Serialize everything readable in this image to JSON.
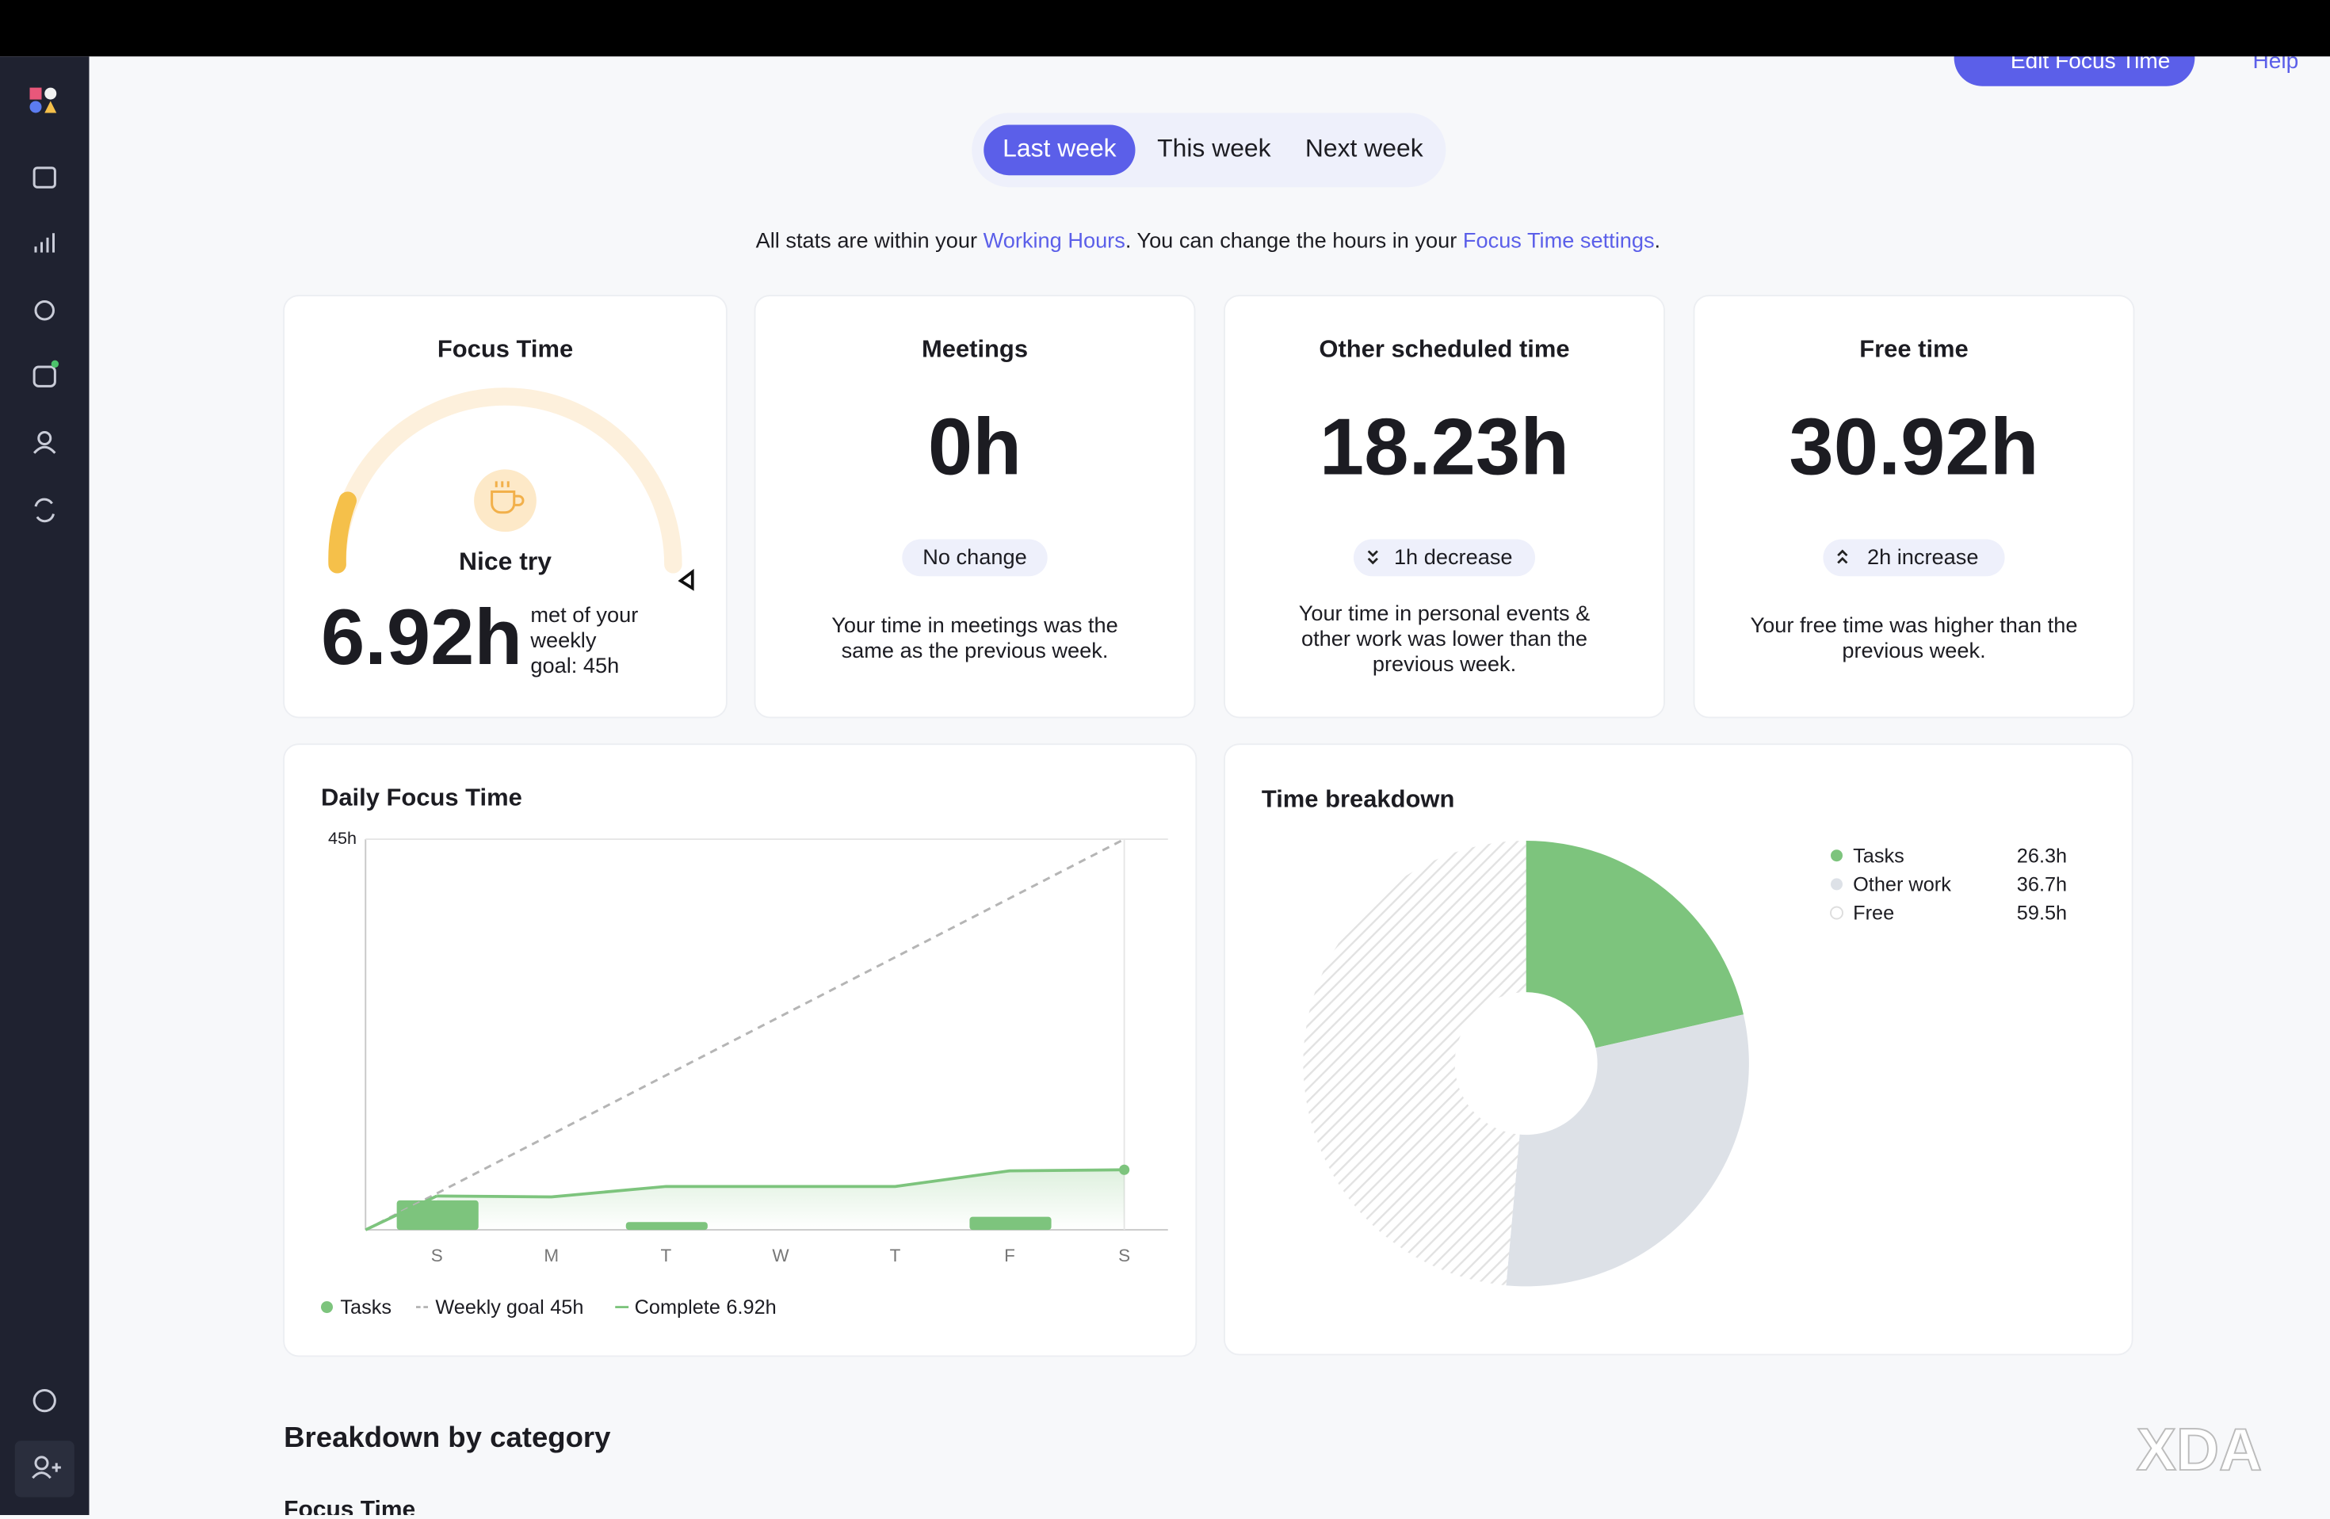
{
  "top_actions": {
    "edit": "Edit Focus Time",
    "help": "Help"
  },
  "tabs": [
    "Last week",
    "This week",
    "Next week"
  ],
  "notice": {
    "before": "All stats are within your ",
    "link1": "Working Hours",
    "middle": ". You can change the hours in your ",
    "link2": "Focus Time settings",
    "after": "."
  },
  "focus_card": {
    "title": "Focus Time",
    "status": "Nice try",
    "value": "6.92h",
    "note_lines": [
      "met of your",
      "weekly",
      "goal: 45h"
    ]
  },
  "stat_cards": [
    {
      "title": "Meetings",
      "value": "0h",
      "badge": "No change",
      "text_lines": [
        "Your time in meetings was the",
        "same as the previous week."
      ]
    },
    {
      "title": "Other scheduled time",
      "value": "18.23h",
      "badge": "1h decrease",
      "text_lines": [
        "Your time in personal events &",
        "other work was lower than the",
        "previous week."
      ]
    },
    {
      "title": "Free time",
      "value": "30.92h",
      "badge": "2h increase",
      "text_lines": [
        "Your free time was higher than the",
        "previous week."
      ]
    }
  ],
  "daily_focus": {
    "type": "line",
    "title": "Daily Focus Time",
    "categories": [
      "S",
      "M",
      "T",
      "W",
      "T",
      "F",
      "S"
    ],
    "ylim": [
      0,
      45
    ],
    "yticks": [
      {
        "value": 45,
        "label": "45h"
      }
    ],
    "series": [
      {
        "name": "Tasks",
        "type": "bar",
        "color": "#7dc47d",
        "values": [
          3.4,
          0,
          0.9,
          0,
          0,
          1.5,
          0
        ]
      },
      {
        "name": "Weekly goal",
        "legend_value": "45h",
        "color": "#b5b5b5",
        "dashed": true,
        "values": [
          4.2,
          11.0,
          17.8,
          24.6,
          31.4,
          38.2,
          45
        ]
      },
      {
        "name": "Complete",
        "legend_value": "6.92h",
        "color": "#7dc47d",
        "values": [
          3.9,
          3.8,
          5.0,
          5.0,
          5.0,
          6.8,
          6.92
        ]
      }
    ]
  },
  "time_breakdown": {
    "type": "pie",
    "title": "Time breakdown",
    "categories": [
      "Tasks",
      "Other work",
      "Free"
    ],
    "values": [
      26.3,
      36.7,
      59.5
    ],
    "value_labels": [
      "26.3h",
      "36.7h",
      "59.5h"
    ],
    "colors": [
      "#7dc47d",
      "#dde1e7",
      "hatch"
    ]
  },
  "sections": {
    "breakdown": "Breakdown by category",
    "focus": "Focus Time"
  }
}
